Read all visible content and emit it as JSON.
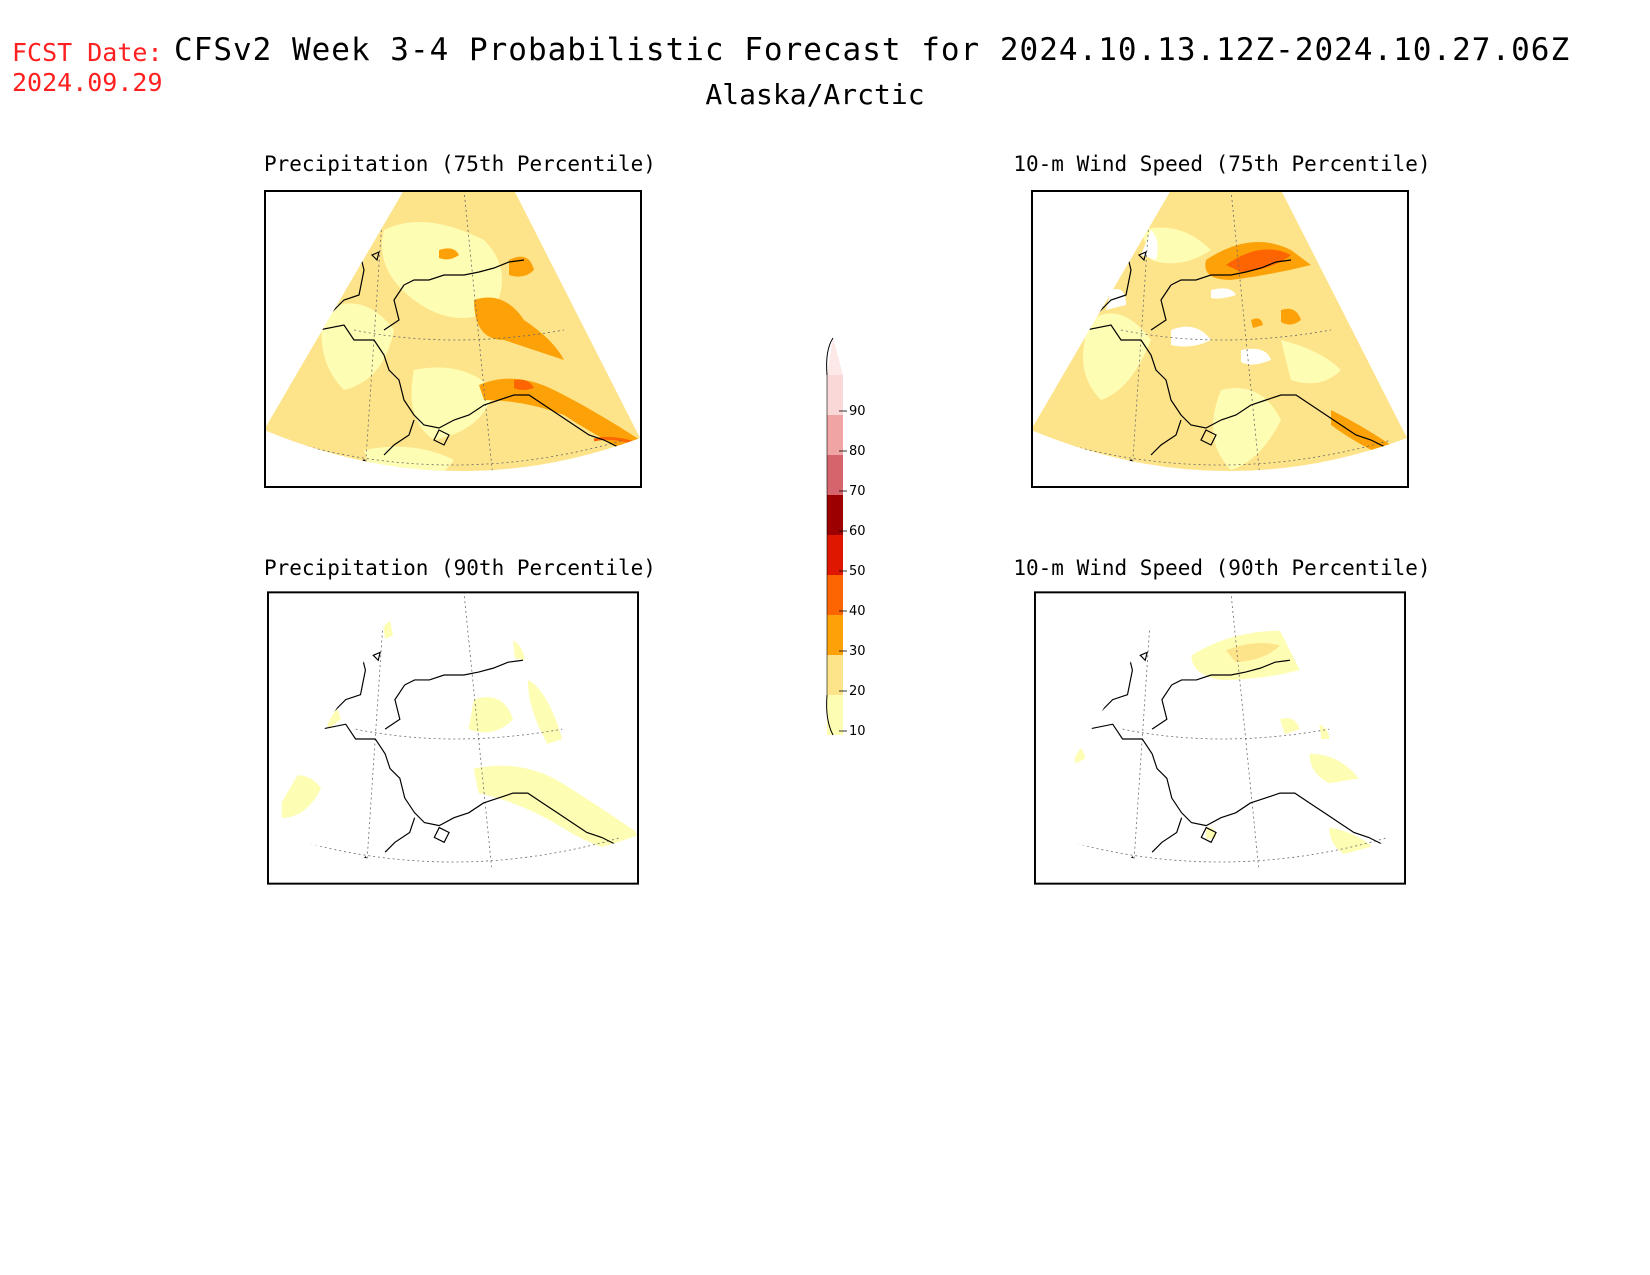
{
  "header": {
    "fcst_label": "FCST Date:",
    "fcst_date": "2024.09.29",
    "title": "CFSv2 Week 3-4 Probabilistic Forecast for 2024.10.13.12Z-2024.10.27.06Z",
    "region": "Alaska/Arctic"
  },
  "panels": [
    {
      "id": "precip75",
      "title": "Precipitation (75th Percentile)"
    },
    {
      "id": "wind75",
      "title": "10-m Wind Speed (75th Percentile)"
    },
    {
      "id": "precip90",
      "title": "Precipitation (90th Percentile)"
    },
    {
      "id": "wind90",
      "title": "10-m Wind Speed (90th Percentile)"
    }
  ],
  "colorbar": {
    "levels": [
      "10",
      "20",
      "30",
      "40",
      "50",
      "60",
      "70",
      "80",
      "90"
    ],
    "colors": [
      "#fefdb4",
      "#fde48a",
      "#fca208",
      "#fd6502",
      "#df1700",
      "#9c0000",
      "#d6646c",
      "#f0a4a4",
      "#fbd8d8"
    ]
  }
}
